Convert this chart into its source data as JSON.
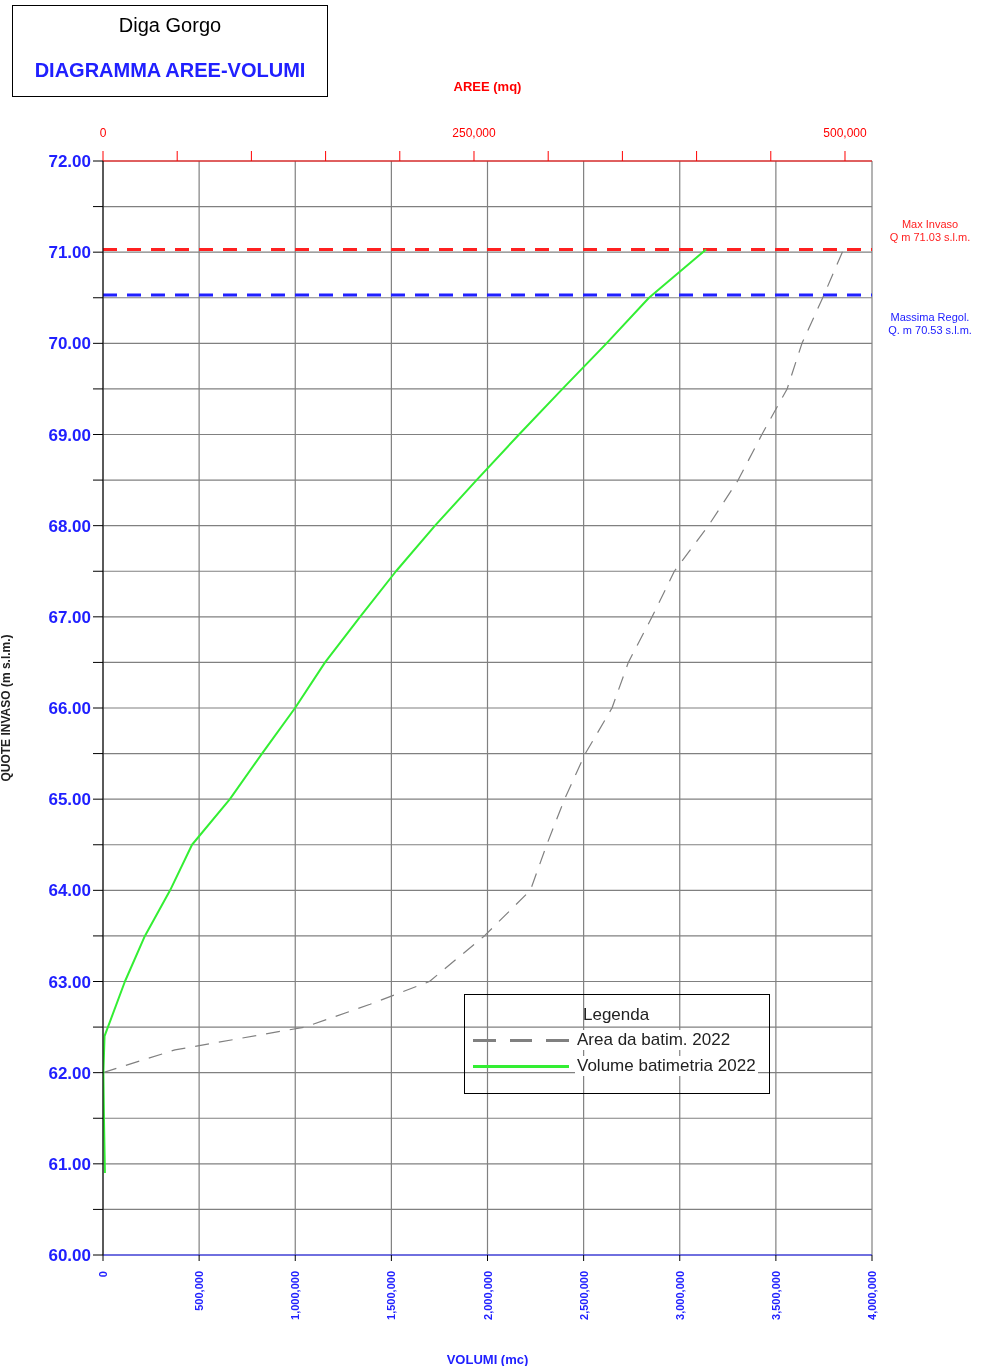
{
  "chart_data": {
    "type": "line",
    "title": "Diga Gorgo",
    "subtitle": "DIAGRAMMA AREE-VOLUMI",
    "xlabel": "VOLUMI (mc)",
    "x2label": "AREE (mq)",
    "ylabel": "QUOTE INVASO (m s.l.m.)",
    "legend_title": "Legenda",
    "legend": "bottom right",
    "grid": true,
    "marker": "none",
    "xlim": [
      0,
      4000000
    ],
    "xticks": [
      0,
      {
        "value": 500000,
        "label": "500,000"
      },
      {
        "value": 1000000,
        "label": "1,000,000"
      },
      {
        "value": 1500000,
        "label": "1,500,000"
      },
      {
        "value": 2000000,
        "label": "2,000,000"
      },
      {
        "value": 2500000,
        "label": "2,500,000"
      },
      {
        "value": 3000000,
        "label": "3,000,000"
      },
      {
        "value": 3500000,
        "label": "3,500,000"
      },
      {
        "value": 4000000,
        "label": "4,000,000"
      }
    ],
    "x2lim": [
      0,
      518200
    ],
    "x2ticks": [
      0,
      {
        "value": 50000,
        "label": null
      },
      {
        "value": 100000,
        "label": null
      },
      {
        "value": 150000,
        "label": null
      },
      {
        "value": 200000,
        "label": null
      },
      {
        "value": 250000,
        "label": "250,000"
      },
      {
        "value": 300000,
        "label": null
      },
      {
        "value": 350000,
        "label": null
      },
      {
        "value": 400000,
        "label": null
      },
      {
        "value": 450000,
        "label": null
      },
      {
        "value": 500000,
        "label": "500,000"
      }
    ],
    "ylim": [
      60,
      72
    ],
    "yticks": [
      {
        "value": 60,
        "label": "60.00"
      },
      {
        "value": 60.5,
        "label": null
      },
      {
        "value": 61,
        "label": "61.00"
      },
      {
        "value": 61.5,
        "label": null
      },
      {
        "value": 62,
        "label": "62.00"
      },
      {
        "value": 62.5,
        "label": null
      },
      {
        "value": 63,
        "label": "63.00"
      },
      {
        "value": 63.5,
        "label": null
      },
      {
        "value": 64,
        "label": "64.00"
      },
      {
        "value": 64.5,
        "label": null
      },
      {
        "value": 65,
        "label": "65.00"
      },
      {
        "value": 65.5,
        "label": null
      },
      {
        "value": 66,
        "label": "66.00"
      },
      {
        "value": 66.5,
        "label": null
      },
      {
        "value": 67,
        "label": "67.00"
      },
      {
        "value": 67.5,
        "label": null
      },
      {
        "value": 68,
        "label": "68.00"
      },
      {
        "value": 68.5,
        "label": null
      },
      {
        "value": 69,
        "label": "69.00"
      },
      {
        "value": 69.5,
        "label": null
      },
      {
        "value": 70,
        "label": "70.00"
      },
      {
        "value": 70.5,
        "label": null
      },
      {
        "value": 71,
        "label": "71.00"
      },
      {
        "value": 71.5,
        "label": null
      },
      {
        "value": 72,
        "label": "72.00"
      }
    ],
    "series": [
      {
        "name": "Area da batim. 2022",
        "color": "#808080",
        "axis": "x2",
        "line_style": "dashed",
        "x": [
          0,
          48500,
          136000,
          180000,
          220000,
          257000,
          288000,
          299000,
          311000,
          325000,
          343000,
          354000,
          370000,
          385000,
          408000,
          428000,
          444000,
          461000,
          471000,
          485000,
          499000
        ],
        "values": [
          62.0,
          62.25,
          62.5,
          62.75,
          63.0,
          63.5,
          64.0,
          64.5,
          65.0,
          65.5,
          66.0,
          66.5,
          67.0,
          67.5,
          68.0,
          68.5,
          69.0,
          69.5,
          70.0,
          70.5,
          71.03
        ]
      },
      {
        "name": "Volume batimetria 2022",
        "color": "#33ee33",
        "line_style": "solid",
        "x": [
          10000,
          5000,
          2000,
          8000,
          114000,
          218000,
          349000,
          463000,
          660000,
          827000,
          999000,
          1155000,
          1337000,
          1524000,
          1727000,
          1943000,
          2164000,
          2390000,
          2619000,
          2840000,
          3137000
        ],
        "values": [
          60.9,
          61.5,
          62.0,
          62.4,
          63.0,
          63.5,
          64.0,
          64.5,
          65.0,
          65.5,
          66.0,
          66.5,
          67.0,
          67.5,
          68.0,
          68.5,
          69.0,
          69.5,
          70.0,
          70.5,
          71.03
        ]
      }
    ],
    "ref_lines": [
      {
        "axis": "y",
        "value": 71.03,
        "label": "Max Invaso\nQ m 71.03 s.l.m.",
        "color": "#ff2020",
        "line_style": "dashed"
      },
      {
        "axis": "y",
        "value": 70.53,
        "label": "Massima Regol.\nQ. m 70.53 s.l.m.",
        "color": "#2020ff",
        "line_style": "dashed"
      }
    ]
  }
}
